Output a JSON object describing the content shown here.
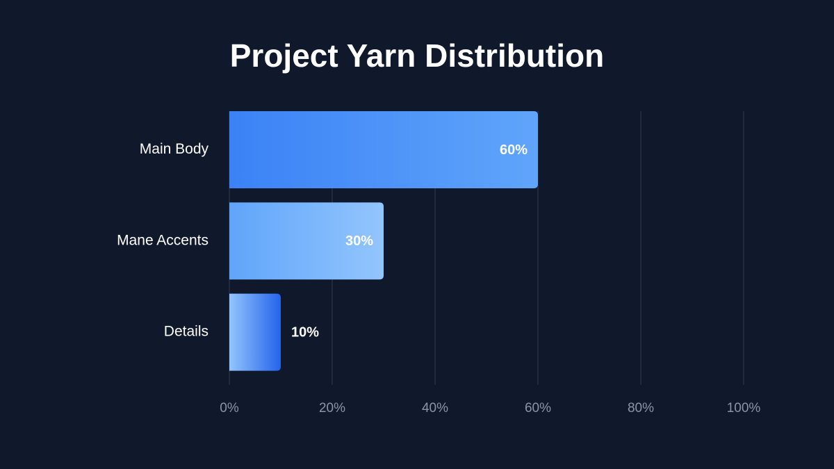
{
  "chart_data": {
    "type": "bar",
    "orientation": "horizontal",
    "title": "Project Yarn Distribution",
    "categories": [
      "Main Body",
      "Mane Accents",
      "Details"
    ],
    "values": [
      60,
      30,
      10
    ],
    "value_labels": [
      "60%",
      "30%",
      "10%"
    ],
    "colors": [
      [
        "#3b82f6",
        "#60a5fa"
      ],
      [
        "#60a5fa",
        "#93c5fd"
      ],
      [
        "#93c5fd",
        "#2563eb"
      ]
    ],
    "xlim": [
      0,
      100
    ],
    "xticks": [
      {
        "value": 0,
        "label": "0%"
      },
      {
        "value": 20,
        "label": "20%"
      },
      {
        "value": 40,
        "label": "40%"
      },
      {
        "value": 60,
        "label": "60%"
      },
      {
        "value": 80,
        "label": "80%"
      },
      {
        "value": 100,
        "label": "100%"
      }
    ],
    "grid": true
  }
}
